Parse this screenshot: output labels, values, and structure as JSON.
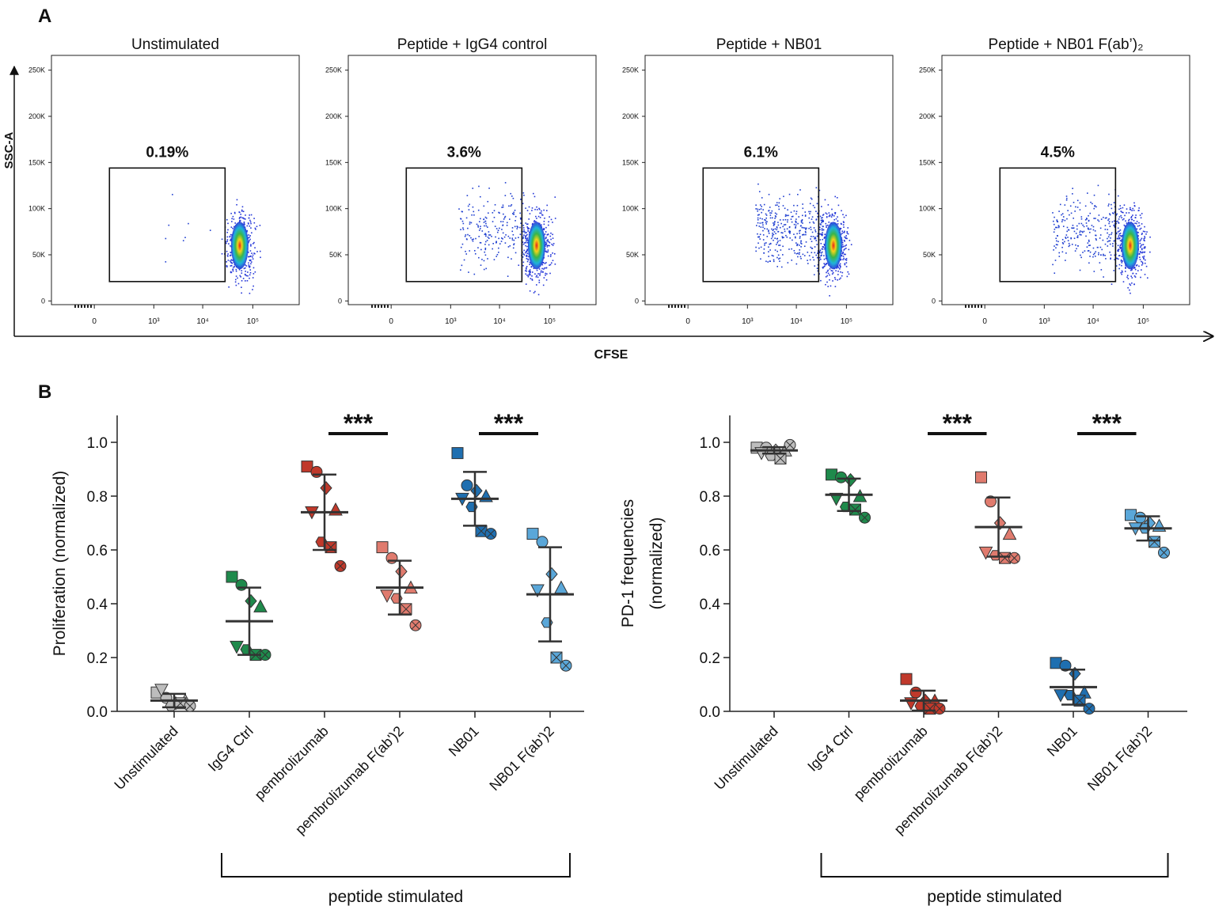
{
  "panel_labels": [
    "A",
    "B"
  ],
  "panel_a": {
    "ylabel": "SSC-A",
    "xlabel": "CFSE"
  },
  "chart_data": [
    {
      "type": "flow",
      "title": "Unstimulated",
      "xscale": "logicle",
      "xlim": [
        -430,
        840000
      ],
      "ylim": [
        -4000,
        266000
      ],
      "xticks": [
        0,
        {
          "value": 1000,
          "label": "10³"
        },
        {
          "value": 10000,
          "label": "10⁴"
        },
        {
          "value": 100000,
          "label": "10⁵"
        }
      ],
      "yticks": [
        0,
        {
          "value": 50000,
          "label": "50K"
        },
        {
          "value": 100000,
          "label": "100K"
        },
        {
          "value": 150000,
          "label": "150K"
        },
        {
          "value": 200000,
          "label": "200K"
        },
        {
          "value": 250000,
          "label": "250K"
        }
      ],
      "gate": {
        "x": [
          70,
          28000
        ],
        "y": [
          21000,
          144000
        ],
        "value": 0.19,
        "value_label": "0.19%"
      }
    },
    {
      "type": "flow",
      "title": "Peptide + IgG4 control",
      "xscale": "logicle",
      "xlim": [
        -430,
        840000
      ],
      "ylim": [
        -4000,
        266000
      ],
      "xticks": [
        0,
        {
          "value": 1000,
          "label": "10³"
        },
        {
          "value": 10000,
          "label": "10⁴"
        },
        {
          "value": 100000,
          "label": "10⁵"
        }
      ],
      "yticks": [
        0,
        {
          "value": 50000,
          "label": "50K"
        },
        {
          "value": 100000,
          "label": "100K"
        },
        {
          "value": 150000,
          "label": "150K"
        },
        {
          "value": 200000,
          "label": "200K"
        },
        {
          "value": 250000,
          "label": "250K"
        }
      ],
      "gate": {
        "x": [
          70,
          28000
        ],
        "y": [
          21000,
          144000
        ],
        "value": 3.6,
        "value_label": "3.6%"
      }
    },
    {
      "type": "flow",
      "title": "Peptide + NB01",
      "xscale": "logicle",
      "xlim": [
        -430,
        840000
      ],
      "ylim": [
        -4000,
        266000
      ],
      "xticks": [
        0,
        {
          "value": 1000,
          "label": "10³"
        },
        {
          "value": 10000,
          "label": "10⁴"
        },
        {
          "value": 100000,
          "label": "10⁵"
        }
      ],
      "yticks": [
        0,
        {
          "value": 50000,
          "label": "50K"
        },
        {
          "value": 100000,
          "label": "100K"
        },
        {
          "value": 150000,
          "label": "150K"
        },
        {
          "value": 200000,
          "label": "200K"
        },
        {
          "value": 250000,
          "label": "250K"
        }
      ],
      "gate": {
        "x": [
          70,
          28000
        ],
        "y": [
          21000,
          144000
        ],
        "value": 6.1,
        "value_label": "6.1%"
      }
    },
    {
      "type": "flow",
      "title": "Peptide + NB01 F(ab’)₂",
      "xscale": "logicle",
      "xlim": [
        -430,
        840000
      ],
      "ylim": [
        -4000,
        266000
      ],
      "xticks": [
        0,
        {
          "value": 1000,
          "label": "10³"
        },
        {
          "value": 10000,
          "label": "10⁴"
        },
        {
          "value": 100000,
          "label": "10⁵"
        }
      ],
      "yticks": [
        0,
        {
          "value": 50000,
          "label": "50K"
        },
        {
          "value": 100000,
          "label": "100K"
        },
        {
          "value": 150000,
          "label": "150K"
        },
        {
          "value": 200000,
          "label": "200K"
        },
        {
          "value": 250000,
          "label": "250K"
        }
      ],
      "gate": {
        "x": [
          70,
          28000
        ],
        "y": [
          21000,
          144000
        ],
        "value": 4.5,
        "value_label": "4.5%"
      }
    },
    {
      "type": "dot",
      "ylabel": [
        "Proliferation (normalized)"
      ],
      "ylim": [
        0,
        1.1
      ],
      "yticks": [
        {
          "value": 0,
          "label": "0.0"
        },
        0.2,
        0.4,
        0.6,
        0.8,
        {
          "value": 1,
          "label": "1.0"
        }
      ],
      "categories": [
        "Unstimulated",
        "IgG4 Ctrl",
        "pembrolizumab",
        "pembrolizumab F(ab')2",
        "NB01",
        "NB01 F(ab')2"
      ],
      "colors": [
        "#bdbdbd",
        "#1f8a4c",
        "#c0392b",
        "#e07b6e",
        "#1f6fb0",
        "#5aa7d9"
      ],
      "points": [
        [
          0.07,
          0.05,
          0.03,
          0.04,
          0.08,
          0.02,
          0.03,
          0.02
        ],
        [
          0.5,
          0.47,
          0.41,
          0.39,
          0.24,
          0.23,
          0.21,
          0.21
        ],
        [
          0.91,
          0.89,
          0.83,
          0.75,
          0.74,
          0.63,
          0.61,
          0.54
        ],
        [
          0.61,
          0.57,
          0.52,
          0.46,
          0.43,
          0.42,
          0.38,
          0.32
        ],
        [
          0.96,
          0.84,
          0.82,
          0.8,
          0.79,
          0.76,
          0.67,
          0.66
        ],
        [
          0.66,
          0.63,
          0.51,
          0.46,
          0.45,
          0.33,
          0.2,
          0.17
        ]
      ],
      "means": [
        0.04,
        0.335,
        0.74,
        0.46,
        0.79,
        0.435
      ],
      "sd": [
        0.025,
        0.125,
        0.14,
        0.1,
        0.1,
        0.175
      ],
      "significance": [
        {
          "from": 2,
          "to": 3,
          "label": "***"
        },
        {
          "from": 4,
          "to": 5,
          "label": "***"
        }
      ],
      "group": {
        "from": 1,
        "to": 5,
        "label": "peptide stimulated"
      }
    },
    {
      "type": "dot",
      "ylabel": [
        "PD-1 frequencies",
        "(normalized)"
      ],
      "ylim": [
        0,
        1.1
      ],
      "yticks": [
        {
          "value": 0,
          "label": "0.0"
        },
        0.2,
        0.4,
        0.6,
        0.8,
        {
          "value": 1,
          "label": "1.0"
        }
      ],
      "categories": [
        "Unstimulated",
        "IgG4 Ctrl",
        "pembrolizumab",
        "pembrolizumab F(ab')2",
        "NB01",
        "NB01 F(ab')2"
      ],
      "colors": [
        "#bdbdbd",
        "#1f8a4c",
        "#c0392b",
        "#e07b6e",
        "#1f6fb0",
        "#5aa7d9"
      ],
      "points": [
        [
          0.98,
          0.98,
          0.97,
          0.97,
          0.96,
          0.95,
          0.94,
          0.99
        ],
        [
          0.88,
          0.87,
          0.86,
          0.8,
          0.79,
          0.76,
          0.75,
          0.72
        ],
        [
          0.12,
          0.07,
          0.04,
          0.04,
          0.03,
          0.02,
          0.01,
          0.01
        ],
        [
          0.87,
          0.78,
          0.7,
          0.66,
          0.59,
          0.58,
          0.57,
          0.57
        ],
        [
          0.18,
          0.17,
          0.14,
          0.07,
          0.06,
          0.06,
          0.04,
          0.01
        ],
        [
          0.73,
          0.72,
          0.7,
          0.69,
          0.68,
          0.68,
          0.63,
          0.59
        ]
      ],
      "means": [
        0.97,
        0.805,
        0.04,
        0.685,
        0.09,
        0.68
      ],
      "sd": [
        0.012,
        0.06,
        0.037,
        0.11,
        0.065,
        0.045
      ],
      "significance": [
        {
          "from": 2,
          "to": 3,
          "label": "***"
        },
        {
          "from": 4,
          "to": 5,
          "label": "***"
        }
      ],
      "group": {
        "from": 1,
        "to": 5,
        "label": "peptide stimulated"
      }
    }
  ]
}
